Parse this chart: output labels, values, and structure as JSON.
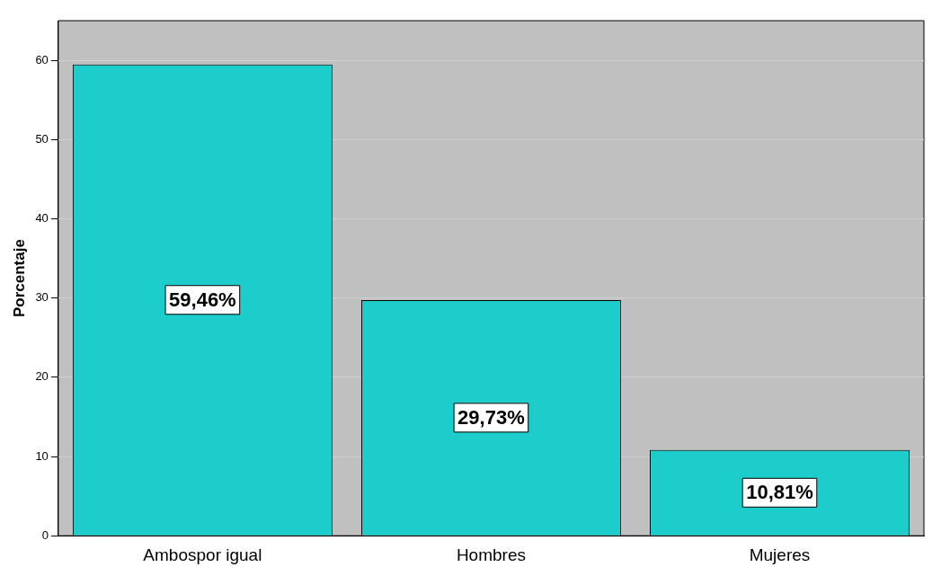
{
  "chart_data": {
    "type": "bar",
    "ylabel": "Porcentaje",
    "categories": [
      "Ambospor igual",
      "Hombres",
      "Mujeres"
    ],
    "values": [
      59.46,
      29.73,
      10.81
    ],
    "value_labels": [
      "59,46%",
      "29,73%",
      "10,81%"
    ],
    "color": "#1ccdcc",
    "ylim": [
      0,
      65
    ],
    "yticks": [
      0,
      10,
      20,
      30,
      40,
      50,
      60
    ],
    "grid": "y",
    "legend": false
  }
}
